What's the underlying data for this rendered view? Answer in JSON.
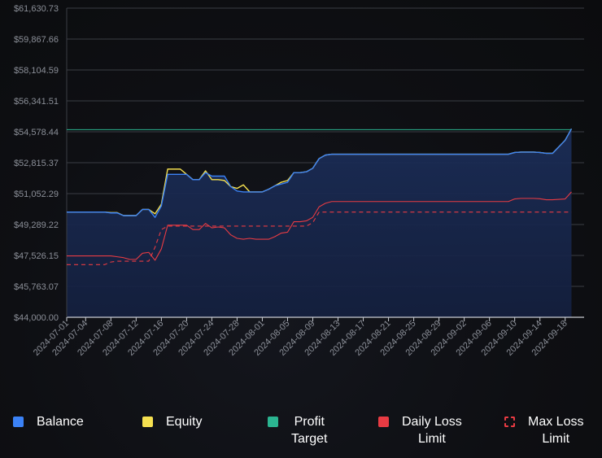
{
  "chart_data": {
    "type": "line",
    "y_ticks": [
      "$61,630.73",
      "$59,867.66",
      "$58,104.59",
      "$56,341.51",
      "$54,578.44",
      "$52,815.37",
      "$51,052.29",
      "$49,289.22",
      "$47,526.15",
      "$45,763.07",
      "$44,000.00"
    ],
    "ylim": [
      44000,
      61630.73
    ],
    "xlim": [
      "2024-07-01",
      "2024-09-21"
    ],
    "x_ticks": [
      "2024-07-01",
      "2024-07-04",
      "2024-07-08",
      "2024-07-12",
      "2024-07-16",
      "2024-07-20",
      "2024-07-24",
      "2024-07-28",
      "2024-08-01",
      "2024-08-05",
      "2024-08-09",
      "2024-08-13",
      "2024-08-17",
      "2024-08-21",
      "2024-08-25",
      "2024-08-29",
      "2024-09-02",
      "2024-09-06",
      "2024-09-10",
      "2024-09-14",
      "2024-09-18"
    ],
    "grid": true,
    "series": [
      {
        "name": "Balance",
        "color": "#3b82f6",
        "style": "solid",
        "points": [
          [
            "2024-07-01",
            50000
          ],
          [
            "2024-07-04",
            50000
          ],
          [
            "2024-07-07",
            50000
          ],
          [
            "2024-07-08",
            49950
          ],
          [
            "2024-07-09",
            49950
          ],
          [
            "2024-07-10",
            49800
          ],
          [
            "2024-07-11",
            49800
          ],
          [
            "2024-07-12",
            49800
          ],
          [
            "2024-07-13",
            50150
          ],
          [
            "2024-07-14",
            50150
          ],
          [
            "2024-07-15",
            49700
          ],
          [
            "2024-07-16",
            50350
          ],
          [
            "2024-07-17",
            52150
          ],
          [
            "2024-07-18",
            52150
          ],
          [
            "2024-07-19",
            52150
          ],
          [
            "2024-07-20",
            52150
          ],
          [
            "2024-07-21",
            51850
          ],
          [
            "2024-07-22",
            51850
          ],
          [
            "2024-07-23",
            52250
          ],
          [
            "2024-07-24",
            52050
          ],
          [
            "2024-07-25",
            52050
          ],
          [
            "2024-07-26",
            52050
          ],
          [
            "2024-07-27",
            51450
          ],
          [
            "2024-07-28",
            51200
          ],
          [
            "2024-07-29",
            51150
          ],
          [
            "2024-07-30",
            51150
          ],
          [
            "2024-07-31",
            51150
          ],
          [
            "2024-08-01",
            51150
          ],
          [
            "2024-08-02",
            51300
          ],
          [
            "2024-08-03",
            51500
          ],
          [
            "2024-08-04",
            51600
          ],
          [
            "2024-08-05",
            51700
          ],
          [
            "2024-08-06",
            52250
          ],
          [
            "2024-08-07",
            52250
          ],
          [
            "2024-08-08",
            52300
          ],
          [
            "2024-08-09",
            52500
          ],
          [
            "2024-08-10",
            53050
          ],
          [
            "2024-08-11",
            53250
          ],
          [
            "2024-08-12",
            53300
          ],
          [
            "2024-08-13",
            53300
          ],
          [
            "2024-08-17",
            53300
          ],
          [
            "2024-08-21",
            53300
          ],
          [
            "2024-08-25",
            53300
          ],
          [
            "2024-08-29",
            53300
          ],
          [
            "2024-09-02",
            53300
          ],
          [
            "2024-09-06",
            53300
          ],
          [
            "2024-09-09",
            53300
          ],
          [
            "2024-09-10",
            53400
          ],
          [
            "2024-09-11",
            53420
          ],
          [
            "2024-09-12",
            53420
          ],
          [
            "2024-09-13",
            53420
          ],
          [
            "2024-09-14",
            53400
          ],
          [
            "2024-09-15",
            53350
          ],
          [
            "2024-09-16",
            53350
          ],
          [
            "2024-09-18",
            54100
          ],
          [
            "2024-09-19",
            54750
          ]
        ]
      },
      {
        "name": "Equity",
        "color": "#f5e050",
        "style": "solid",
        "points": [
          [
            "2024-07-01",
            50000
          ],
          [
            "2024-07-04",
            50000
          ],
          [
            "2024-07-07",
            50000
          ],
          [
            "2024-07-08",
            49970
          ],
          [
            "2024-07-09",
            49970
          ],
          [
            "2024-07-10",
            49800
          ],
          [
            "2024-07-11",
            49800
          ],
          [
            "2024-07-12",
            49800
          ],
          [
            "2024-07-13",
            50150
          ],
          [
            "2024-07-14",
            50150
          ],
          [
            "2024-07-15",
            49900
          ],
          [
            "2024-07-16",
            50450
          ],
          [
            "2024-07-17",
            52450
          ],
          [
            "2024-07-18",
            52450
          ],
          [
            "2024-07-19",
            52450
          ],
          [
            "2024-07-20",
            52150
          ],
          [
            "2024-07-21",
            51850
          ],
          [
            "2024-07-22",
            51850
          ],
          [
            "2024-07-23",
            52350
          ],
          [
            "2024-07-24",
            51850
          ],
          [
            "2024-07-25",
            51850
          ],
          [
            "2024-07-26",
            51800
          ],
          [
            "2024-07-27",
            51450
          ],
          [
            "2024-07-28",
            51350
          ],
          [
            "2024-07-29",
            51550
          ],
          [
            "2024-07-30",
            51150
          ],
          [
            "2024-07-31",
            51150
          ],
          [
            "2024-08-01",
            51150
          ],
          [
            "2024-08-02",
            51300
          ],
          [
            "2024-08-03",
            51500
          ],
          [
            "2024-08-04",
            51700
          ],
          [
            "2024-08-05",
            51800
          ],
          [
            "2024-08-06",
            52250
          ],
          [
            "2024-08-07",
            52250
          ],
          [
            "2024-08-08",
            52300
          ],
          [
            "2024-08-09",
            52500
          ],
          [
            "2024-08-10",
            53050
          ],
          [
            "2024-08-11",
            53250
          ],
          [
            "2024-08-12",
            53300
          ],
          [
            "2024-08-13",
            53300
          ],
          [
            "2024-08-17",
            53300
          ],
          [
            "2024-08-21",
            53300
          ],
          [
            "2024-08-25",
            53300
          ],
          [
            "2024-08-29",
            53300
          ],
          [
            "2024-09-02",
            53300
          ],
          [
            "2024-09-06",
            53300
          ],
          [
            "2024-09-09",
            53300
          ],
          [
            "2024-09-10",
            53400
          ],
          [
            "2024-09-11",
            53420
          ],
          [
            "2024-09-12",
            53420
          ],
          [
            "2024-09-13",
            53420
          ],
          [
            "2024-09-14",
            53400
          ],
          [
            "2024-09-15",
            53350
          ],
          [
            "2024-09-16",
            53350
          ],
          [
            "2024-09-18",
            54100
          ],
          [
            "2024-09-19",
            54750
          ]
        ]
      },
      {
        "name": "Profit Target",
        "color": "#2bb591",
        "style": "solid",
        "points": [
          [
            "2024-07-01",
            54700
          ],
          [
            "2024-09-19",
            54700
          ]
        ]
      },
      {
        "name": "Daily Loss Limit",
        "color": "#e83b43",
        "style": "solid",
        "points": [
          [
            "2024-07-01",
            47500
          ],
          [
            "2024-07-08",
            47500
          ],
          [
            "2024-07-09",
            47450
          ],
          [
            "2024-07-10",
            47400
          ],
          [
            "2024-07-11",
            47300
          ],
          [
            "2024-07-12",
            47300
          ],
          [
            "2024-07-13",
            47650
          ],
          [
            "2024-07-14",
            47700
          ],
          [
            "2024-07-15",
            47250
          ],
          [
            "2024-07-16",
            47900
          ],
          [
            "2024-07-17",
            49250
          ],
          [
            "2024-07-18",
            49250
          ],
          [
            "2024-07-19",
            49250
          ],
          [
            "2024-07-20",
            49250
          ],
          [
            "2024-07-21",
            49000
          ],
          [
            "2024-07-22",
            49000
          ],
          [
            "2024-07-23",
            49350
          ],
          [
            "2024-07-24",
            49100
          ],
          [
            "2024-07-25",
            49150
          ],
          [
            "2024-07-26",
            49100
          ],
          [
            "2024-07-27",
            48700
          ],
          [
            "2024-07-28",
            48500
          ],
          [
            "2024-07-29",
            48450
          ],
          [
            "2024-07-30",
            48500
          ],
          [
            "2024-07-31",
            48450
          ],
          [
            "2024-08-01",
            48450
          ],
          [
            "2024-08-02",
            48450
          ],
          [
            "2024-08-03",
            48600
          ],
          [
            "2024-08-04",
            48800
          ],
          [
            "2024-08-05",
            48850
          ],
          [
            "2024-08-06",
            49450
          ],
          [
            "2024-08-07",
            49450
          ],
          [
            "2024-08-08",
            49500
          ],
          [
            "2024-08-09",
            49700
          ],
          [
            "2024-08-10",
            50300
          ],
          [
            "2024-08-11",
            50500
          ],
          [
            "2024-08-12",
            50600
          ],
          [
            "2024-08-13",
            50600
          ],
          [
            "2024-09-09",
            50600
          ],
          [
            "2024-09-10",
            50750
          ],
          [
            "2024-09-11",
            50780
          ],
          [
            "2024-09-12",
            50780
          ],
          [
            "2024-09-13",
            50780
          ],
          [
            "2024-09-14",
            50760
          ],
          [
            "2024-09-15",
            50700
          ],
          [
            "2024-09-16",
            50700
          ],
          [
            "2024-09-18",
            50750
          ],
          [
            "2024-09-19",
            51150
          ]
        ]
      },
      {
        "name": "Max Loss Limit",
        "color": "#e83b43",
        "style": "dashed",
        "points": [
          [
            "2024-07-01",
            47000
          ],
          [
            "2024-07-07",
            47000
          ],
          [
            "2024-07-08",
            47150
          ],
          [
            "2024-07-09",
            47200
          ],
          [
            "2024-07-10",
            47200
          ],
          [
            "2024-07-14",
            47200
          ],
          [
            "2024-07-15",
            48000
          ],
          [
            "2024-07-16",
            49000
          ],
          [
            "2024-07-17",
            49200
          ],
          [
            "2024-07-18",
            49200
          ],
          [
            "2024-07-31",
            49200
          ],
          [
            "2024-08-01",
            49200
          ],
          [
            "2024-08-08",
            49200
          ],
          [
            "2024-08-09",
            49400
          ],
          [
            "2024-08-10",
            50000
          ],
          [
            "2024-08-11",
            50000
          ],
          [
            "2024-09-19",
            50000
          ]
        ]
      }
    ]
  },
  "legend": {
    "balance": "Balance",
    "equity": "Equity",
    "profit_target_line1": "Profit",
    "profit_target_line2": "Target",
    "daily_loss_line1": "Daily Loss",
    "daily_loss_line2": "Limit",
    "max_loss_line1": "Max Loss",
    "max_loss_line2": "Limit"
  }
}
